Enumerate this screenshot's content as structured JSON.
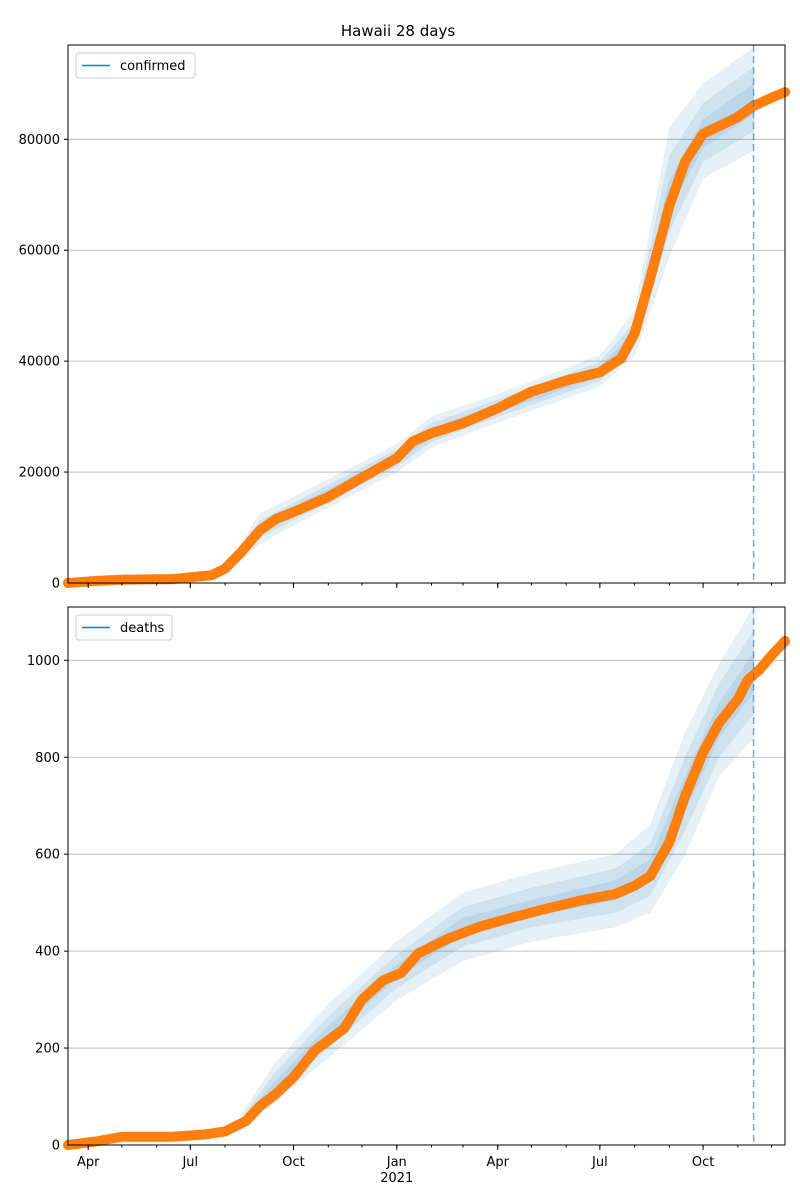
{
  "chart_data": {
    "type": "line",
    "title": "Hawaii 28 days",
    "x_start": "2020-03-14",
    "x_end": "2021-12-13",
    "x_ticks": [
      {
        "label": "Apr",
        "date": "2020-04-01"
      },
      {
        "label": "Jul",
        "date": "2020-07-01"
      },
      {
        "label": "Oct",
        "date": "2020-10-01"
      },
      {
        "label": "Jan",
        "date": "2021-01-01",
        "sublabel": "2021"
      },
      {
        "label": "Apr",
        "date": "2021-04-01"
      },
      {
        "label": "Jul",
        "date": "2021-07-01"
      },
      {
        "label": "Oct",
        "date": "2021-10-01"
      }
    ],
    "forecast_start": "2021-11-15",
    "colors": {
      "model": "#1f77b4",
      "observed": "#ff7f0e",
      "band": "#1f77b4",
      "grid": "#b0b0b0"
    },
    "panels": [
      {
        "legend": "confirmed",
        "legend_position": "top-left",
        "grid": "y",
        "ylim": [
          0,
          97000
        ],
        "yticks": [
          "0",
          "20000",
          "40000",
          "60000",
          "80000"
        ],
        "ytick_values": [
          0,
          20000,
          40000,
          60000,
          80000
        ],
        "observed": [
          [
            "2020-03-14",
            0
          ],
          [
            "2020-04-10",
            400
          ],
          [
            "2020-05-01",
            600
          ],
          [
            "2020-06-15",
            700
          ],
          [
            "2020-07-20",
            1400
          ],
          [
            "2020-08-01",
            2600
          ],
          [
            "2020-08-15",
            5500
          ],
          [
            "2020-09-01",
            9500
          ],
          [
            "2020-09-15",
            11500
          ],
          [
            "2020-10-01",
            12800
          ],
          [
            "2020-11-01",
            15500
          ],
          [
            "2020-12-01",
            19000
          ],
          [
            "2021-01-01",
            22500
          ],
          [
            "2021-01-15",
            25500
          ],
          [
            "2021-02-01",
            27000
          ],
          [
            "2021-03-01",
            28800
          ],
          [
            "2021-04-01",
            31500
          ],
          [
            "2021-05-01",
            34500
          ],
          [
            "2021-06-01",
            36500
          ],
          [
            "2021-07-01",
            38000
          ],
          [
            "2021-07-20",
            40500
          ],
          [
            "2021-08-01",
            45000
          ],
          [
            "2021-08-15",
            55000
          ],
          [
            "2021-09-01",
            68000
          ],
          [
            "2021-09-15",
            76000
          ],
          [
            "2021-10-01",
            81000
          ],
          [
            "2021-11-01",
            84000
          ],
          [
            "2021-11-15",
            86000
          ],
          [
            "2021-12-01",
            87500
          ],
          [
            "2021-12-13",
            88500
          ]
        ],
        "model": [
          [
            "2021-10-01",
            80500
          ],
          [
            "2021-11-15",
            87000
          ]
        ],
        "bands": [
          {
            "upper": [
              [
                "2020-08-15",
                7000
              ],
              [
                "2020-09-01",
                12500
              ],
              [
                "2020-10-01",
                15500
              ],
              [
                "2021-01-01",
                25000
              ],
              [
                "2021-02-01",
                30000
              ],
              [
                "2021-04-01",
                34000
              ],
              [
                "2021-07-01",
                41000
              ],
              [
                "2021-08-01",
                49000
              ],
              [
                "2021-09-01",
                82000
              ],
              [
                "2021-10-01",
                90000
              ],
              [
                "2021-11-15",
                96500
              ]
            ],
            "lower": [
              [
                "2020-08-15",
                4000
              ],
              [
                "2020-09-01",
                7000
              ],
              [
                "2020-10-01",
                10500
              ],
              [
                "2021-01-01",
                20000
              ],
              [
                "2021-02-01",
                24500
              ],
              [
                "2021-04-01",
                29000
              ],
              [
                "2021-07-01",
                35500
              ],
              [
                "2021-08-01",
                41000
              ],
              [
                "2021-09-01",
                59000
              ],
              [
                "2021-10-01",
                73000
              ],
              [
                "2021-11-15",
                78000
              ]
            ]
          },
          {
            "upper": [
              [
                "2020-08-15",
                6400
              ],
              [
                "2020-09-01",
                11200
              ],
              [
                "2020-10-01",
                14400
              ],
              [
                "2021-01-01",
                24000
              ],
              [
                "2021-02-01",
                28800
              ],
              [
                "2021-04-01",
                33000
              ],
              [
                "2021-07-01",
                39800
              ],
              [
                "2021-08-01",
                47000
              ],
              [
                "2021-09-01",
                77000
              ],
              [
                "2021-10-01",
                86500
              ],
              [
                "2021-11-15",
                93000
              ]
            ],
            "lower": [
              [
                "2020-08-15",
                4600
              ],
              [
                "2020-09-01",
                8200
              ],
              [
                "2020-10-01",
                11400
              ],
              [
                "2021-01-01",
                21000
              ],
              [
                "2021-02-01",
                25500
              ],
              [
                "2021-04-01",
                30000
              ],
              [
                "2021-07-01",
                36500
              ],
              [
                "2021-08-01",
                43000
              ],
              [
                "2021-09-01",
                63500
              ],
              [
                "2021-10-01",
                76000
              ],
              [
                "2021-11-15",
                81500
              ]
            ]
          },
          {
            "upper": [
              [
                "2020-08-15",
                5900
              ],
              [
                "2020-09-01",
                10200
              ],
              [
                "2020-10-01",
                13600
              ],
              [
                "2021-01-01",
                23300
              ],
              [
                "2021-02-01",
                27900
              ],
              [
                "2021-04-01",
                32200
              ],
              [
                "2021-07-01",
                38900
              ],
              [
                "2021-08-01",
                45500
              ],
              [
                "2021-09-01",
                72500
              ],
              [
                "2021-10-01",
                83500
              ],
              [
                "2021-11-15",
                90000
              ]
            ],
            "lower": [
              [
                "2020-08-15",
                5100
              ],
              [
                "2020-09-01",
                9200
              ],
              [
                "2020-10-01",
                12200
              ],
              [
                "2021-01-01",
                21800
              ],
              [
                "2021-02-01",
                26400
              ],
              [
                "2021-04-01",
                30800
              ],
              [
                "2021-07-01",
                37300
              ],
              [
                "2021-08-01",
                44200
              ],
              [
                "2021-09-01",
                67500
              ],
              [
                "2021-10-01",
                78500
              ],
              [
                "2021-11-15",
                84500
              ]
            ]
          }
        ]
      },
      {
        "legend": "deaths",
        "legend_position": "top-left",
        "grid": "y",
        "ylim": [
          0,
          1110
        ],
        "yticks": [
          "0",
          "200",
          "400",
          "600",
          "800",
          "1000"
        ],
        "ytick_values": [
          0,
          200,
          400,
          600,
          800,
          1000
        ],
        "observed": [
          [
            "2020-03-14",
            0
          ],
          [
            "2020-04-10",
            8
          ],
          [
            "2020-05-01",
            17
          ],
          [
            "2020-06-15",
            17
          ],
          [
            "2020-07-15",
            22
          ],
          [
            "2020-08-01",
            28
          ],
          [
            "2020-08-20",
            50
          ],
          [
            "2020-09-01",
            80
          ],
          [
            "2020-09-15",
            105
          ],
          [
            "2020-10-01",
            140
          ],
          [
            "2020-10-20",
            195
          ],
          [
            "2020-11-15",
            240
          ],
          [
            "2020-12-01",
            300
          ],
          [
            "2020-12-20",
            340
          ],
          [
            "2021-01-05",
            355
          ],
          [
            "2021-01-20",
            395
          ],
          [
            "2021-02-15",
            425
          ],
          [
            "2021-03-15",
            450
          ],
          [
            "2021-04-15",
            470
          ],
          [
            "2021-05-15",
            488
          ],
          [
            "2021-06-15",
            505
          ],
          [
            "2021-07-15",
            518
          ],
          [
            "2021-08-01",
            535
          ],
          [
            "2021-08-15",
            555
          ],
          [
            "2021-09-01",
            625
          ],
          [
            "2021-09-15",
            720
          ],
          [
            "2021-10-01",
            810
          ],
          [
            "2021-10-15",
            870
          ],
          [
            "2021-11-01",
            920
          ],
          [
            "2021-11-10",
            960
          ],
          [
            "2021-11-20",
            980
          ],
          [
            "2021-12-01",
            1010
          ],
          [
            "2021-12-13",
            1040
          ]
        ],
        "model": [
          [
            "2021-10-15",
            860
          ],
          [
            "2021-11-15",
            975
          ]
        ],
        "bands": [
          {
            "upper": [
              [
                "2020-08-15",
                60
              ],
              [
                "2020-09-15",
                170
              ],
              [
                "2020-11-01",
                290
              ],
              [
                "2021-01-01",
                420
              ],
              [
                "2021-03-01",
                520
              ],
              [
                "2021-05-01",
                560
              ],
              [
                "2021-07-15",
                600
              ],
              [
                "2021-08-15",
                660
              ],
              [
                "2021-09-15",
                850
              ],
              [
                "2021-10-15",
                990
              ],
              [
                "2021-11-15",
                1110
              ]
            ],
            "lower": [
              [
                "2020-08-15",
                30
              ],
              [
                "2020-09-15",
                90
              ],
              [
                "2020-11-01",
                180
              ],
              [
                "2021-01-01",
                300
              ],
              [
                "2021-03-01",
                380
              ],
              [
                "2021-05-01",
                420
              ],
              [
                "2021-07-15",
                450
              ],
              [
                "2021-08-15",
                480
              ],
              [
                "2021-09-15",
                600
              ],
              [
                "2021-10-15",
                760
              ],
              [
                "2021-11-15",
                840
              ]
            ]
          },
          {
            "upper": [
              [
                "2020-08-15",
                53
              ],
              [
                "2020-09-15",
                150
              ],
              [
                "2020-11-01",
                265
              ],
              [
                "2021-01-01",
                392
              ],
              [
                "2021-03-01",
                490
              ],
              [
                "2021-05-01",
                530
              ],
              [
                "2021-07-15",
                570
              ],
              [
                "2021-08-15",
                620
              ],
              [
                "2021-09-15",
                800
              ],
              [
                "2021-10-15",
                950
              ],
              [
                "2021-11-15",
                1060
              ]
            ],
            "lower": [
              [
                "2020-08-15",
                36
              ],
              [
                "2020-09-15",
                105
              ],
              [
                "2020-11-01",
                200
              ],
              [
                "2021-01-01",
                325
              ],
              [
                "2021-03-01",
                410
              ],
              [
                "2021-05-01",
                450
              ],
              [
                "2021-07-15",
                480
              ],
              [
                "2021-08-15",
                515
              ],
              [
                "2021-09-15",
                650
              ],
              [
                "2021-10-15",
                800
              ],
              [
                "2021-11-15",
                890
              ]
            ]
          },
          {
            "upper": [
              [
                "2020-08-15",
                47
              ],
              [
                "2020-09-15",
                132
              ],
              [
                "2020-11-01",
                245
              ],
              [
                "2021-01-01",
                372
              ],
              [
                "2021-03-01",
                468
              ],
              [
                "2021-05-01",
                505
              ],
              [
                "2021-07-15",
                545
              ],
              [
                "2021-08-15",
                590
              ],
              [
                "2021-09-15",
                760
              ],
              [
                "2021-10-15",
                910
              ],
              [
                "2021-11-15",
                1015
              ]
            ],
            "lower": [
              [
                "2020-08-15",
                41
              ],
              [
                "2020-09-15",
                118
              ],
              [
                "2020-11-01",
                220
              ],
              [
                "2021-01-01",
                345
              ],
              [
                "2021-03-01",
                432
              ],
              [
                "2021-05-01",
                472
              ],
              [
                "2021-07-15",
                505
              ],
              [
                "2021-08-15",
                545
              ],
              [
                "2021-09-15",
                690
              ],
              [
                "2021-10-15",
                840
              ],
              [
                "2021-11-15",
                935
              ]
            ]
          }
        ]
      }
    ]
  }
}
